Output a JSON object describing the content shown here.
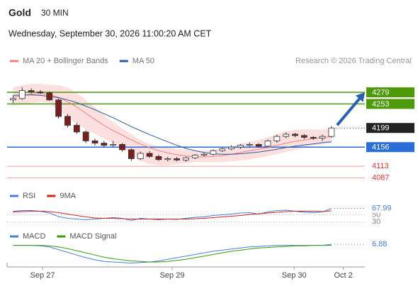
{
  "chart_data": [
    {
      "type": "candlestick",
      "title": "Gold",
      "subtitle": "30 MIN",
      "date": "Wednesday, September 30, 2026 11:00:20 AM CET",
      "source": "Research © 2026 Trading Central",
      "xlim": [
        0,
        38
      ],
      "ylim": [
        4075,
        4303
      ],
      "xticks": [
        {
          "value": 3.74,
          "label": "Sep 27"
        },
        {
          "value": 17.99,
          "label": "Sep 29"
        },
        {
          "value": 31.4,
          "label": "Sep 30"
        },
        {
          "value": 36.8,
          "label": "Oct 2"
        }
      ],
      "up_color": "#ffffff",
      "down_color": "#7a1f1f",
      "wick_color": "#333333",
      "open": [
        4262,
        4265,
        4283,
        4280,
        4278,
        4262,
        4225,
        4205,
        4190,
        4170,
        4165,
        4160,
        4162,
        4150,
        4130,
        4142,
        4135,
        4128,
        4130,
        4127,
        4132,
        4138,
        4140,
        4148,
        4152,
        4156,
        4160,
        4162,
        4158,
        4170,
        4180,
        4185,
        4182,
        4178,
        4176,
        4180
      ],
      "high": [
        4272,
        4290,
        4288,
        4284,
        4281,
        4265,
        4230,
        4210,
        4194,
        4175,
        4170,
        4170,
        4165,
        4153,
        4146,
        4147,
        4139,
        4134,
        4134,
        4135,
        4140,
        4143,
        4151,
        4155,
        4160,
        4163,
        4166,
        4165,
        4173,
        4184,
        4189,
        4188,
        4185,
        4181,
        4184,
        4203
      ],
      "low": [
        4255,
        4262,
        4276,
        4275,
        4260,
        4220,
        4200,
        4186,
        4165,
        4160,
        4156,
        4156,
        4146,
        4125,
        4127,
        4132,
        4125,
        4124,
        4124,
        4123,
        4129,
        4135,
        4137,
        4145,
        4149,
        4152,
        4157,
        4155,
        4155,
        4166,
        4176,
        4178,
        4174,
        4172,
        4170,
        4177
      ],
      "close": [
        4265,
        4283,
        4280,
        4278,
        4262,
        4225,
        4205,
        4190,
        4170,
        4165,
        4160,
        4162,
        4150,
        4130,
        4142,
        4135,
        4128,
        4130,
        4127,
        4132,
        4138,
        4140,
        4148,
        4152,
        4156,
        4160,
        4162,
        4158,
        4170,
        4180,
        4185,
        4182,
        4178,
        4176,
        4180,
        4199
      ],
      "band": {
        "color": "#fbd6d6",
        "upper": [
          4290,
          4295,
          4298,
          4298,
          4296,
          4295,
          4290,
          4278,
          4262,
          4245,
          4228,
          4212,
          4198,
          4185,
          4172,
          4163,
          4158,
          4155,
          4152,
          4150,
          4148,
          4148,
          4150,
          4153,
          4158,
          4163,
          4168,
          4172,
          4178,
          4185,
          4192,
          4195,
          4196,
          4196,
          4195,
          4200
        ],
        "lower": [
          4250,
          4252,
          4255,
          4258,
          4255,
          4240,
          4222,
          4208,
          4196,
          4185,
          4175,
          4165,
          4155,
          4140,
          4125,
          4118,
          4115,
          4115,
          4118,
          4120,
          4122,
          4122,
          4122,
          4122,
          4124,
          4126,
          4128,
          4132,
          4136,
          4140,
          4145,
          4150,
          4155,
          4160,
          4162,
          4165
        ]
      },
      "series": [
        {
          "name": "MA 20 + Bollinger Bands",
          "color": "#f08080",
          "values": [
            4268,
            4272,
            4275,
            4276,
            4274,
            4268,
            4258,
            4246,
            4232,
            4218,
            4205,
            4193,
            4183,
            4172,
            4163,
            4155,
            4148,
            4143,
            4139,
            4136,
            4134,
            4134,
            4135,
            4137,
            4140,
            4144,
            4148,
            4151,
            4155,
            4160,
            4165,
            4169,
            4172,
            4175,
            4177,
            4180
          ]
        },
        {
          "name": "MA 50",
          "color": "#2d5a9a",
          "values": [
            4272,
            4273,
            4273,
            4272,
            4270,
            4267,
            4262,
            4256,
            4248,
            4240,
            4231,
            4222,
            4212,
            4202,
            4193,
            4184,
            4176,
            4168,
            4160,
            4153,
            4148,
            4144,
            4141,
            4140,
            4140,
            4141,
            4143,
            4145,
            4148,
            4151,
            4155,
            4158,
            4161,
            4163,
            4166,
            4168
          ]
        }
      ],
      "levels": [
        {
          "value": 4279,
          "color": "#4c9a0a",
          "line": "solid",
          "box": true
        },
        {
          "value": 4253,
          "color": "#4c9a0a",
          "line": "solid",
          "box": true
        },
        {
          "value": 4199,
          "color": "#222222",
          "line": "dotted",
          "box": true
        },
        {
          "value": 4156,
          "color": "#2a6dd6",
          "line": "solid",
          "box": true
        },
        {
          "value": 4113,
          "color": "#e03030",
          "line": "faint",
          "box": false
        },
        {
          "value": 4087,
          "color": "#e03030",
          "line": "faint",
          "box": false
        }
      ],
      "arrow_color": "#2b5fb0"
    },
    {
      "type": "line",
      "ylim": [
        25,
        85
      ],
      "yticks": [
        50,
        30
      ],
      "series": [
        {
          "name": "RSI",
          "color": "#4a7fd6",
          "values": [
            60,
            62,
            62,
            60,
            55,
            45,
            40,
            38,
            36,
            38,
            40,
            42,
            40,
            34,
            40,
            38,
            36,
            38,
            37,
            40,
            43,
            44,
            48,
            50,
            52,
            55,
            56,
            52,
            58,
            62,
            63,
            60,
            57,
            56,
            58,
            67.99
          ]
        },
        {
          "name": "9MA",
          "color": "#d42020",
          "values": [
            58,
            59,
            60,
            60,
            59,
            56,
            52,
            48,
            44,
            41,
            40,
            40,
            39,
            38,
            38,
            38,
            38,
            38,
            38,
            38,
            39,
            40,
            42,
            44,
            46,
            48,
            51,
            53,
            55,
            57,
            59,
            60,
            60,
            60,
            59,
            61
          ]
        }
      ]
    },
    {
      "type": "line",
      "ylim": [
        -30,
        15
      ],
      "series": [
        {
          "name": "MACD",
          "color": "#4a7fd6",
          "values": [
            5,
            5,
            5,
            4,
            2,
            -3,
            -8,
            -13,
            -18,
            -22,
            -25,
            -26,
            -27,
            -28,
            -27,
            -26,
            -24,
            -21,
            -18,
            -15,
            -12,
            -9,
            -6,
            -4,
            -2,
            0,
            2,
            3,
            4,
            5,
            5,
            5,
            5,
            5,
            5,
            6.88
          ]
        },
        {
          "name": "MACD Signal",
          "color": "#3a9a10",
          "values": [
            5,
            5,
            5,
            5,
            4,
            2,
            -1,
            -5,
            -9,
            -13,
            -17,
            -20,
            -22,
            -24,
            -25,
            -26,
            -26,
            -25,
            -23,
            -21,
            -18,
            -15,
            -12,
            -9,
            -6,
            -4,
            -2,
            0,
            1,
            2,
            3,
            4,
            4,
            5,
            5,
            5
          ]
        }
      ]
    }
  ]
}
